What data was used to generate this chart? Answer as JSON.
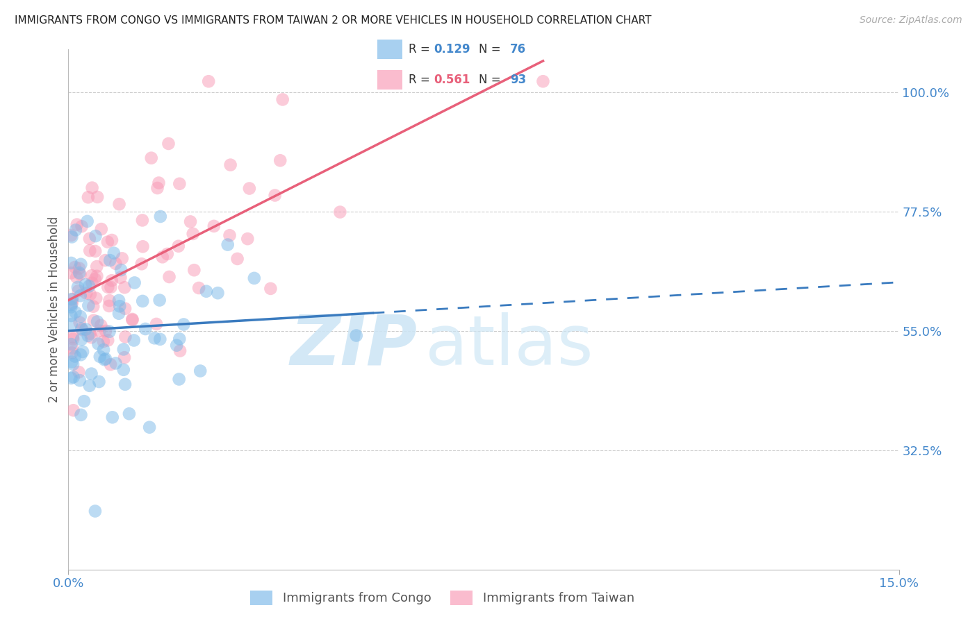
{
  "title": "IMMIGRANTS FROM CONGO VS IMMIGRANTS FROM TAIWAN 2 OR MORE VEHICLES IN HOUSEHOLD CORRELATION CHART",
  "source_text": "Source: ZipAtlas.com",
  "ylabel_label": "2 or more Vehicles in Household",
  "y_tick_labels": [
    "100.0%",
    "77.5%",
    "55.0%",
    "32.5%"
  ],
  "y_tick_values": [
    1.0,
    0.775,
    0.55,
    0.325
  ],
  "x_lim": [
    0.0,
    0.15
  ],
  "y_lim": [
    0.1,
    1.08
  ],
  "congo_R": 0.129,
  "congo_N": 76,
  "taiwan_R": 0.561,
  "taiwan_N": 93,
  "congo_color": "#7ab8e8",
  "taiwan_color": "#f899b5",
  "congo_line_color": "#3a7bbf",
  "taiwan_line_color": "#e8607a",
  "watermark_color": "#cce5f5",
  "axis_label_color": "#4488cc",
  "grid_color": "#cccccc",
  "background_color": "#ffffff",
  "title_fontsize": 11,
  "source_fontsize": 10,
  "tick_fontsize": 13,
  "ylabel_fontsize": 12,
  "legend_fontsize": 13
}
